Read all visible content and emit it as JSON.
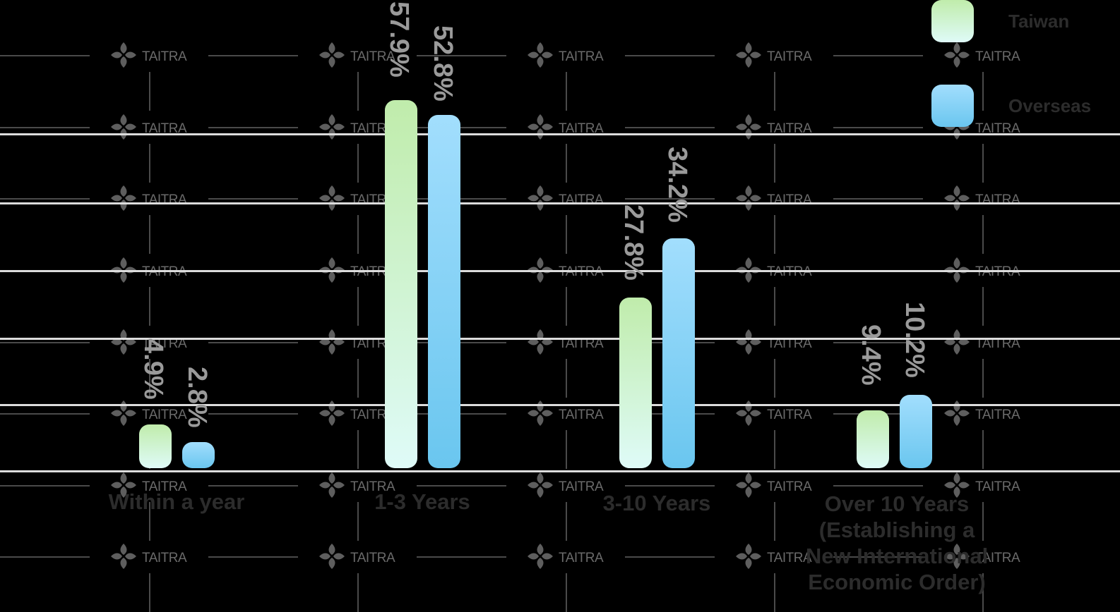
{
  "chart_data": {
    "type": "bar",
    "title": "",
    "xlabel": "",
    "ylabel": "",
    "categories": [
      "Within a year",
      "1-3 Years",
      "3-10 Years",
      "Over 10 Years (Establishing a New International Economic Order)"
    ],
    "series": [
      {
        "name": "Taiwan",
        "values": [
          4.9,
          57.9,
          27.8,
          9.4
        ],
        "labels": [
          "4.9%",
          "57.9%",
          "27.8%",
          "9.4%"
        ]
      },
      {
        "name": "Overseas",
        "values": [
          2.8,
          52.8,
          34.2,
          10.2
        ],
        "labels": [
          "2.8%",
          "52.8%",
          "34.2%",
          "10.2%"
        ]
      }
    ],
    "grid": true,
    "legend_position": "top-right",
    "colors": {
      "Taiwan": [
        "#c0ecab",
        "#dffbf8"
      ],
      "Overseas": [
        "#a2defd",
        "#6ac6ef"
      ]
    }
  },
  "legend": {
    "taiwan": "Taiwan",
    "overseas": "Overseas"
  },
  "categories": {
    "c0": "Within a year",
    "c1": "1-3 Years",
    "c2": "3-10 Years",
    "c3a": "Over 10 Years",
    "c3b": "(Establishing a",
    "c3c": "New International",
    "c3d": "Economic Order)"
  },
  "watermark": {
    "text": "TAITRA"
  }
}
